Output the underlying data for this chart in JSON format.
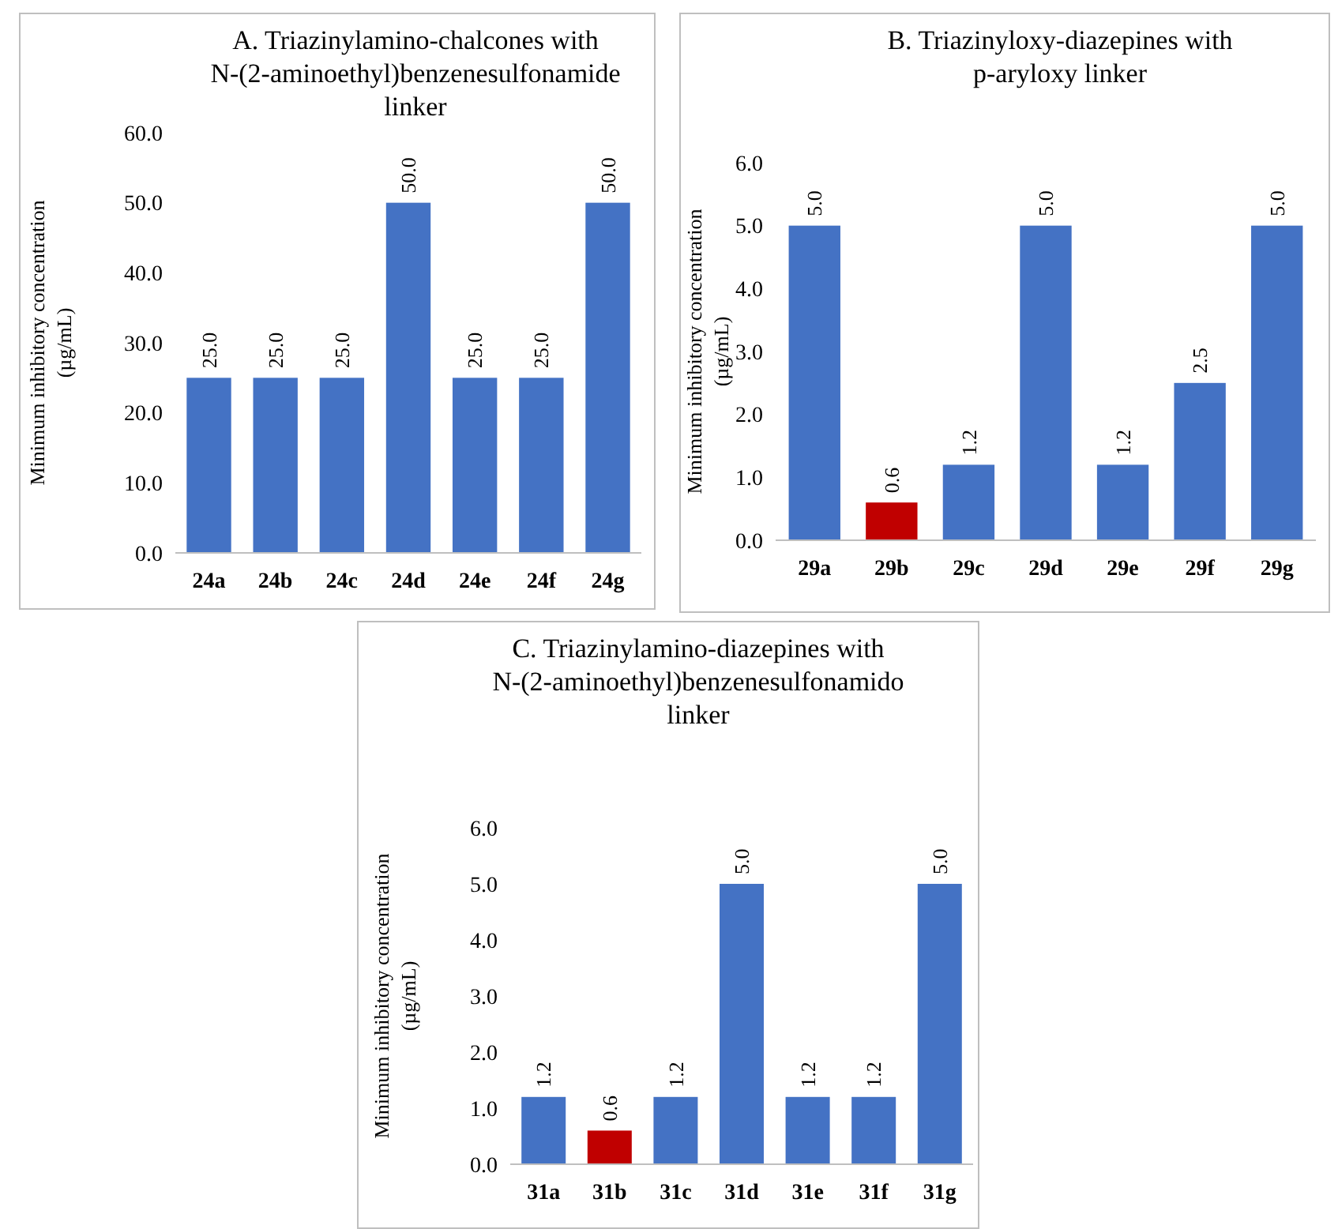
{
  "chart_data": [
    {
      "type": "bar",
      "title": "A. Triazinylamino-chalcones with N-(2-aminoethyl)benzenesulfonamide linker",
      "ylabel": "Minimum inhibitory concentration (µg/mL)",
      "categories": [
        "24a",
        "24b",
        "24c",
        "24d",
        "24e",
        "24f",
        "24g"
      ],
      "values": [
        25,
        25,
        25,
        50,
        25,
        25,
        50
      ],
      "colors": [
        "#4472c4",
        "#4472c4",
        "#4472c4",
        "#4472c4",
        "#4472c4",
        "#4472c4",
        "#4472c4"
      ],
      "value_labels": [
        "25.0",
        "25.0",
        "25.0",
        "50.0",
        "25.0",
        "25.0",
        "50.0"
      ],
      "ylim": [
        0,
        60
      ],
      "yticks": [
        {
          "value": 0,
          "label": "0.0"
        },
        {
          "value": 10,
          "label": "10.0"
        },
        {
          "value": 20,
          "label": "20.0"
        },
        {
          "value": 30,
          "label": "30.0"
        },
        {
          "value": 40,
          "label": "40.0"
        },
        {
          "value": 50,
          "label": "50.0"
        },
        {
          "value": 60,
          "label": "60.0"
        }
      ],
      "grid": false
    },
    {
      "type": "bar",
      "title": "B. Triazinyloxy-diazepines with p-aryloxy linker",
      "ylabel": "Minimum inhibitory concentration (µg/mL)",
      "categories": [
        "29a",
        "29b",
        "29c",
        "29d",
        "29e",
        "29f",
        "29g"
      ],
      "values": [
        5,
        0.6,
        1.2,
        5,
        1.2,
        2.5,
        5
      ],
      "colors": [
        "#4472c4",
        "#c00000",
        "#4472c4",
        "#4472c4",
        "#4472c4",
        "#4472c4",
        "#4472c4"
      ],
      "value_labels": [
        "5.0",
        "0.6",
        "1.2",
        "5.0",
        "1.2",
        "2.5",
        "5.0"
      ],
      "ylim": [
        0,
        6
      ],
      "yticks": [
        {
          "value": 0,
          "label": "0.0"
        },
        {
          "value": 1,
          "label": "1.0"
        },
        {
          "value": 2,
          "label": "2.0"
        },
        {
          "value": 3,
          "label": "3.0"
        },
        {
          "value": 4,
          "label": "4.0"
        },
        {
          "value": 5,
          "label": "5.0"
        },
        {
          "value": 6,
          "label": "6.0"
        }
      ],
      "grid": false
    },
    {
      "type": "bar",
      "title": "C. Triazinylamino-diazepines with N-(2-aminoethyl)benzenesulfonamido linker",
      "ylabel": "Minimum inhibitory concentration (µg/mL)",
      "categories": [
        "31a",
        "31b",
        "31c",
        "31d",
        "31e",
        "31f",
        "31g"
      ],
      "values": [
        1.2,
        0.6,
        1.2,
        5,
        1.2,
        1.2,
        5
      ],
      "colors": [
        "#4472c4",
        "#c00000",
        "#4472c4",
        "#4472c4",
        "#4472c4",
        "#4472c4",
        "#4472c4"
      ],
      "value_labels": [
        "1.2",
        "0.6",
        "1.2",
        "5.0",
        "1.2",
        "1.2",
        "5.0"
      ],
      "ylim": [
        0,
        6
      ],
      "yticks": [
        {
          "value": 0,
          "label": "0.0"
        },
        {
          "value": 1,
          "label": "1.0"
        },
        {
          "value": 2,
          "label": "2.0"
        },
        {
          "value": 3,
          "label": "3.0"
        },
        {
          "value": 4,
          "label": "4.0"
        },
        {
          "value": 5,
          "label": "5.0"
        },
        {
          "value": 6,
          "label": "6.0"
        }
      ],
      "grid": false
    }
  ]
}
